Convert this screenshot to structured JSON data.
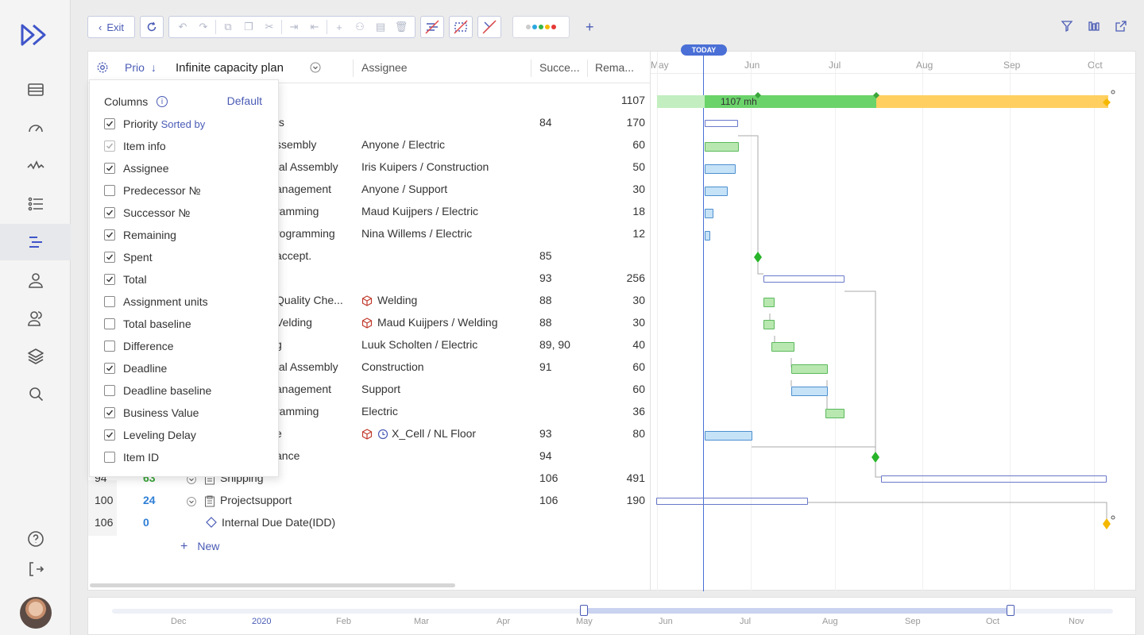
{
  "toolbar": {
    "exit_label": "Exit"
  },
  "grid": {
    "headers": {
      "prio": "Prio",
      "plan": "Infinite capacity plan",
      "assignee": "Assignee",
      "successor": "Succe...",
      "remaining": "Rema..."
    },
    "rows": [
      {
        "name": "",
        "assignee": "",
        "succ": "",
        "rem": "1107"
      },
      {
        "name": "ts",
        "assignee": "",
        "succ": "84",
        "rem": "170"
      },
      {
        "name": "ssembly",
        "assignee": "Anyone / Electric",
        "succ": "",
        "rem": "60"
      },
      {
        "name": "tal Assembly",
        "assignee": "Iris Kuipers / Construction",
        "succ": "",
        "rem": "50"
      },
      {
        "name": "anagement",
        "assignee": "Anyone / Support",
        "succ": "",
        "rem": "30"
      },
      {
        "name": "ramming",
        "assignee": "Maud Kuijpers / Electric",
        "succ": "",
        "rem": "18"
      },
      {
        "name": "rogramming",
        "assignee": "Nina Willems / Electric",
        "succ": "",
        "rem": "12"
      },
      {
        "name": "accept.",
        "assignee": "",
        "succ": "85",
        "rem": ""
      },
      {
        "name": "",
        "assignee": "",
        "succ": "93",
        "rem": "256"
      },
      {
        "name": "Quality Che...",
        "assignee": "Welding",
        "succ": "88",
        "rem": "30"
      },
      {
        "name": "Velding",
        "assignee": "Maud Kuijpers / Welding",
        "succ": "88",
        "rem": "30"
      },
      {
        "name": "g",
        "assignee": "Luuk Scholten / Electric",
        "succ": "89, 90",
        "rem": "40"
      },
      {
        "name": "tal Assembly",
        "assignee": "Construction",
        "succ": "91",
        "rem": "60"
      },
      {
        "name": "anagement",
        "assignee": "Support",
        "succ": "",
        "rem": "60"
      },
      {
        "name": "ramming",
        "assignee": "Electric",
        "succ": "",
        "rem": "36"
      },
      {
        "name": "e",
        "assignee": "X_Cell / NL Floor",
        "succ": "93",
        "rem": "80"
      },
      {
        "name": "ance",
        "assignee": "",
        "succ": "94",
        "rem": ""
      },
      {
        "id": "94",
        "prio": "63",
        "name": "Shipping",
        "assignee": "",
        "succ": "106",
        "rem": "491"
      },
      {
        "id": "100",
        "prio": "24",
        "name": "Projectsupport",
        "assignee": "",
        "succ": "106",
        "rem": "190"
      },
      {
        "id": "106",
        "prio": "0",
        "name": "Internal Due Date(IDD)",
        "assignee": "",
        "succ": "",
        "rem": ""
      }
    ],
    "new_label": "New"
  },
  "columns_panel": {
    "title": "Columns",
    "default_label": "Default",
    "sorted_by": "Sorted by",
    "items": [
      {
        "label": "Priority",
        "checked": true
      },
      {
        "label": "Item info",
        "checked": true
      },
      {
        "label": "Assignee",
        "checked": true
      },
      {
        "label": "Predecessor №",
        "checked": false
      },
      {
        "label": "Successor №",
        "checked": true
      },
      {
        "label": "Remaining",
        "checked": true
      },
      {
        "label": "Spent",
        "checked": true
      },
      {
        "label": "Total",
        "checked": true
      },
      {
        "label": "Assignment units",
        "checked": false
      },
      {
        "label": "Total baseline",
        "checked": false
      },
      {
        "label": "Difference",
        "checked": false
      },
      {
        "label": "Deadline",
        "checked": true
      },
      {
        "label": "Deadline baseline",
        "checked": false
      },
      {
        "label": "Business Value",
        "checked": true
      },
      {
        "label": "Leveling Delay",
        "checked": true
      },
      {
        "label": "Item ID",
        "checked": false
      }
    ]
  },
  "gantt": {
    "today_label": "TODAY",
    "months": [
      "May",
      "Jun",
      "Jul",
      "Aug",
      "Sep",
      "Oct"
    ],
    "summary_label": "1107 mh"
  },
  "timeline": {
    "labels": [
      "Dec",
      "2020",
      "Feb",
      "Mar",
      "Apr",
      "May",
      "Jun",
      "Jul",
      "Aug",
      "Sep",
      "Oct",
      "Nov"
    ]
  },
  "colors": {
    "accent": "#4a5bb5",
    "green": "#6ad36a",
    "orange": "#ffd060",
    "blue": "#c6e2f7"
  }
}
